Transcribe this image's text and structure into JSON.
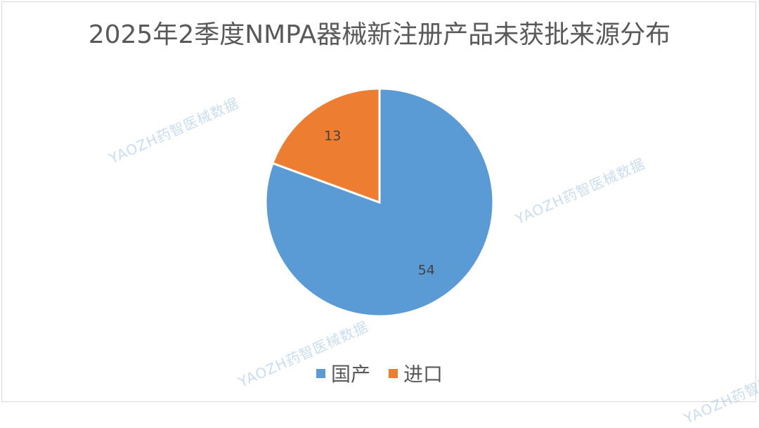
{
  "chart_data": {
    "type": "pie",
    "title": "2025年2季度NMPA器械新注册产品未获批来源分布",
    "slices": [
      {
        "label": "国产",
        "value": 54,
        "color": "#5b9bd5"
      },
      {
        "label": "进口",
        "value": 13,
        "color": "#ed7d31"
      }
    ],
    "legend_position": "bottom"
  },
  "watermark_text": "YAOZH药智医械数据"
}
